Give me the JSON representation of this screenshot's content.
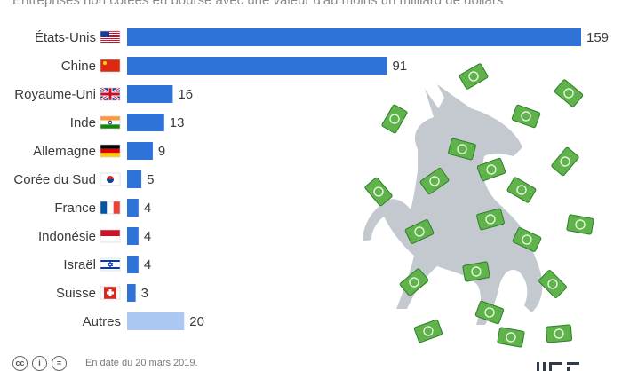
{
  "page": {
    "subtitle": "Entreprises non cotées en bourse avec une valeur d'au moins un milliard de dollars",
    "footer_date": "En date du 20 mars 2019.",
    "cc_icons": [
      "cc-icon",
      "attribution-icon",
      "no-derivatives-icon"
    ]
  },
  "colors": {
    "bar": "#2f73d8",
    "bar_other": "#aac8f2",
    "money": "#5fb34a",
    "money_dark": "#2e7d2a",
    "unicorn": "#c4c9d0"
  },
  "chart_data": {
    "type": "bar",
    "orientation": "horizontal",
    "title": "",
    "subtitle": "Entreprises non cotées en bourse avec une valeur d'au moins un milliard de dollars",
    "categories": [
      "États-Unis",
      "Chine",
      "Royaume-Uni",
      "Inde",
      "Allemagne",
      "Corée du Sud",
      "France",
      "Indonésie",
      "Israël",
      "Suisse",
      "Autres"
    ],
    "flags": [
      "us",
      "cn",
      "gb",
      "in",
      "de",
      "kr",
      "fr",
      "id",
      "il",
      "ch",
      ""
    ],
    "values": [
      159,
      91,
      16,
      13,
      9,
      5,
      4,
      4,
      4,
      3,
      20
    ],
    "highlight_last_category_color": "#aac8f2",
    "xlim": [
      0,
      159
    ],
    "grid": false,
    "legend": "none"
  }
}
